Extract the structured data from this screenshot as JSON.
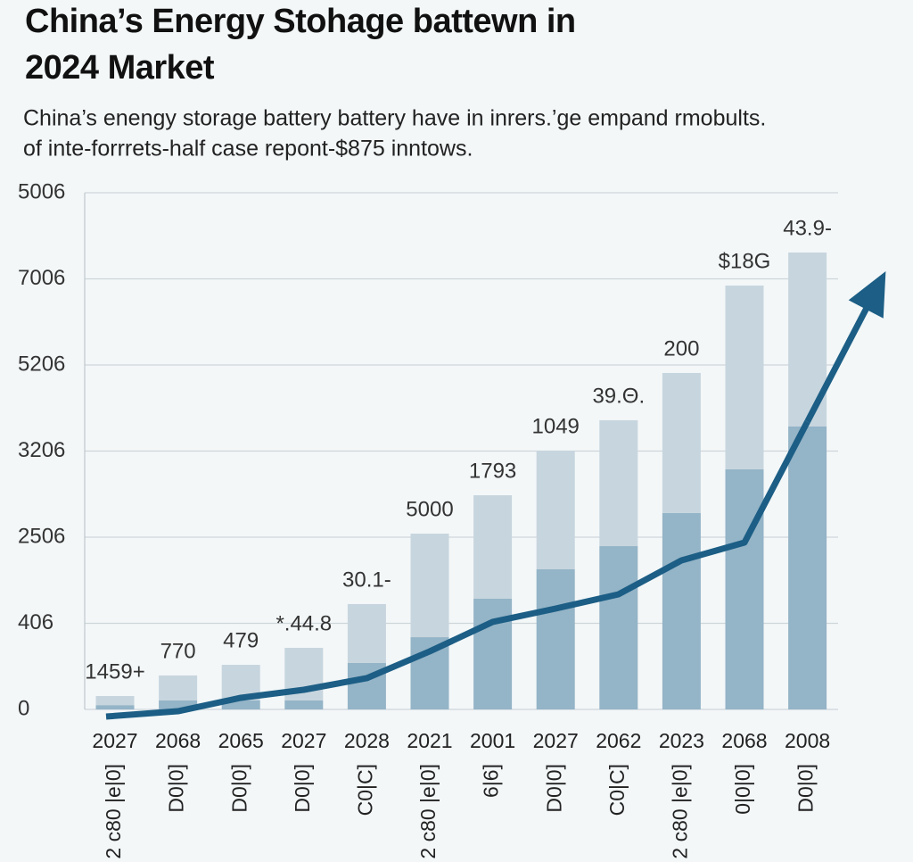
{
  "chart_data": {
    "type": "stacked_bar_line",
    "title": [
      "China’s Energy Stohage battewn in",
      "2024 Market"
    ],
    "subtitle": [
      "China’s enengy storage battery battery have in inrers.’ge empand rmobults.",
      "of inte-forrrets-half case repont-$875 inntows."
    ],
    "categories": [
      "2027",
      "2068",
      "2065",
      "2027",
      "2028",
      "2021",
      "2001",
      "2027",
      "2062",
      "2023",
      "2068",
      "2008"
    ],
    "x_sublabels": [
      "2 c80 |e|0]",
      "D0|0]",
      "D0|0]",
      "D0|0]",
      "C0|C]",
      "2 c80 |e|0]",
      "6|6]",
      "D0|0]",
      "C0|C]",
      "2 c80 |e|0]",
      "0|0|0]",
      "D0|0]"
    ],
    "annotations": [
      "1459+",
      "770",
      "479",
      "*.44.8",
      "30.1-",
      "5000",
      "1793",
      "1049",
      "39.Θ.",
      "200",
      "$18G",
      "43.9-"
    ],
    "series": [
      {
        "color": "#94b4c7",
        "values": [
          50,
          104,
          104,
          104,
          539,
          839,
          1285,
          1627,
          1896,
          2280,
          2788,
          3285
        ]
      },
      {
        "color": "#c7d5de",
        "values": [
          105,
          290,
          414,
          611,
          684,
          1202,
          1202,
          1378,
          1462,
          1627,
          2134,
          2021
        ]
      },
      {
        "type": "line",
        "color": "#1c5e85",
        "values": [
          -83,
          -21,
          135,
          228,
          363,
          674,
          1016,
          1171,
          1337,
          1731,
          1938,
          3342
        ]
      }
    ],
    "ylim": [
      0,
      6000
    ],
    "yticks": [
      0,
      {
        "value": 1000,
        "label": "406"
      },
      {
        "value": 2000,
        "label": "2506"
      },
      {
        "value": 3000,
        "label": "3206"
      },
      {
        "value": 4000,
        "label": "5206"
      },
      {
        "value": 5000,
        "label": "7006"
      },
      {
        "value": 6000,
        "label": "5006"
      }
    ],
    "grid": true
  }
}
